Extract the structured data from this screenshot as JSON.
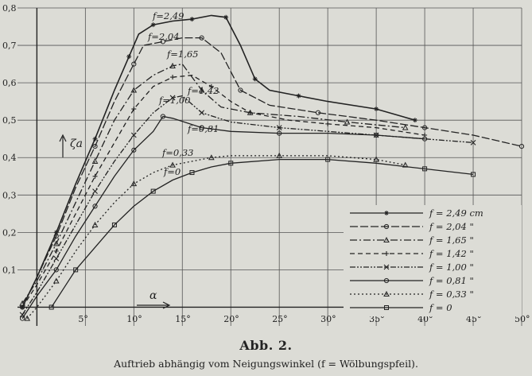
{
  "figure": {
    "caption_title": "Abb. 2.",
    "caption_text": "Auftrieb abhängig vom Neigungswinkel (f = Wölbungspfeil)."
  },
  "colors": {
    "paper": "#dcdcd6",
    "ink": "#222222",
    "grid": "#555555"
  },
  "chart_data": {
    "type": "line",
    "title": "",
    "xlabel": "α",
    "ylabel": "ζa",
    "xlim": [
      -2,
      50
    ],
    "ylim": [
      -0.05,
      0.8
    ],
    "grid": true,
    "x_ticks": [
      "5°",
      "10°",
      "15°",
      "20°",
      "25°",
      "30°",
      "35°",
      "40°",
      "45°",
      "50°"
    ],
    "y_ticks": [
      "0,1",
      "0,2",
      "0,3",
      "0,4",
      "0,5",
      "0,6",
      "0,7",
      "0,8"
    ],
    "legend_position": "bottom-right",
    "series": [
      {
        "name": "f = 2,49 cm",
        "dash": "solid",
        "marker": "star",
        "x": [
          -1.5,
          0,
          2,
          4,
          6,
          8,
          9.5,
          10.5,
          12,
          14,
          16,
          18,
          19.5,
          21,
          22.5,
          24,
          27,
          30,
          35,
          39
        ],
        "y": [
          0.0,
          0.08,
          0.2,
          0.33,
          0.45,
          0.58,
          0.67,
          0.73,
          0.755,
          0.765,
          0.77,
          0.78,
          0.775,
          0.7,
          0.61,
          0.58,
          0.565,
          0.55,
          0.53,
          0.5
        ],
        "label": "f=2,49"
      },
      {
        "name": "f = 2,04 \"",
        "dash": "long-dash",
        "marker": "circle",
        "x": [
          -1.5,
          0,
          2,
          4,
          6,
          8,
          10,
          11,
          13,
          15,
          17,
          19,
          21,
          24,
          29,
          35,
          40,
          45,
          50
        ],
        "y": [
          0.0,
          0.08,
          0.19,
          0.32,
          0.43,
          0.55,
          0.65,
          0.7,
          0.71,
          0.72,
          0.72,
          0.68,
          0.58,
          0.54,
          0.52,
          0.5,
          0.48,
          0.46,
          0.43
        ],
        "label": "f=2,04"
      },
      {
        "name": "f = 1,65 \"",
        "dash": "dash-dot",
        "marker": "triangle",
        "x": [
          -1.5,
          0,
          2,
          4,
          6,
          8,
          10,
          12,
          14,
          15,
          17,
          19,
          22,
          27,
          32,
          38
        ],
        "y": [
          0.01,
          0.07,
          0.17,
          0.28,
          0.39,
          0.5,
          0.58,
          0.62,
          0.645,
          0.65,
          0.58,
          0.535,
          0.52,
          0.51,
          0.495,
          0.48
        ],
        "label": "f=1,65"
      },
      {
        "name": "f = 1,42 \"",
        "dash": "dash",
        "marker": "plus",
        "x": [
          -1.5,
          0,
          2,
          4,
          6,
          8,
          10,
          12,
          14,
          16,
          18,
          20,
          22,
          26,
          30,
          35,
          40
        ],
        "y": [
          0.0,
          0.06,
          0.15,
          0.25,
          0.35,
          0.44,
          0.53,
          0.59,
          0.615,
          0.62,
          0.59,
          0.55,
          0.52,
          0.5,
          0.49,
          0.48,
          0.46
        ],
        "label": "f=1,42"
      },
      {
        "name": "f = 1,00 \"",
        "dash": "dash-dot-dot",
        "marker": "cross",
        "x": [
          -1.5,
          0,
          2,
          4,
          6,
          8,
          10,
          12,
          14,
          15,
          17,
          20,
          25,
          30,
          35,
          40,
          45
        ],
        "y": [
          -0.02,
          0.04,
          0.13,
          0.22,
          0.31,
          0.39,
          0.46,
          0.52,
          0.56,
          0.565,
          0.52,
          0.495,
          0.48,
          0.47,
          0.46,
          0.45,
          0.44
        ],
        "label": "f=1,00"
      },
      {
        "name": "f = 0,81 \"",
        "dash": "solid",
        "marker": "circle",
        "x": [
          -1.5,
          0,
          2,
          4,
          6,
          8,
          10,
          12,
          13,
          14,
          17,
          20,
          25,
          30,
          35,
          40
        ],
        "y": [
          -0.03,
          0.03,
          0.1,
          0.19,
          0.27,
          0.35,
          0.42,
          0.47,
          0.51,
          0.505,
          0.48,
          0.47,
          0.465,
          0.465,
          0.46,
          0.45
        ],
        "label": "f=0,81"
      },
      {
        "name": "f = 0,33 \"",
        "dash": "dotted",
        "marker": "triangle",
        "x": [
          -1,
          0,
          2,
          4,
          6,
          8,
          10,
          12,
          14,
          16,
          18,
          20,
          25,
          30,
          35,
          38
        ],
        "y": [
          -0.03,
          0.0,
          0.07,
          0.15,
          0.22,
          0.28,
          0.33,
          0.36,
          0.38,
          0.39,
          0.4,
          0.405,
          0.405,
          0.405,
          0.395,
          0.38
        ],
        "label": "f=0,33"
      },
      {
        "name": "f = 0",
        "dash": "solid",
        "marker": "square",
        "x": [
          1.5,
          3,
          4,
          6,
          8,
          10,
          12,
          14,
          16,
          18,
          20,
          25,
          30,
          35,
          40,
          45
        ],
        "y": [
          0.0,
          0.06,
          0.1,
          0.16,
          0.22,
          0.27,
          0.31,
          0.34,
          0.36,
          0.375,
          0.385,
          0.395,
          0.395,
          0.385,
          0.37,
          0.355
        ],
        "label": "f=0"
      }
    ]
  }
}
